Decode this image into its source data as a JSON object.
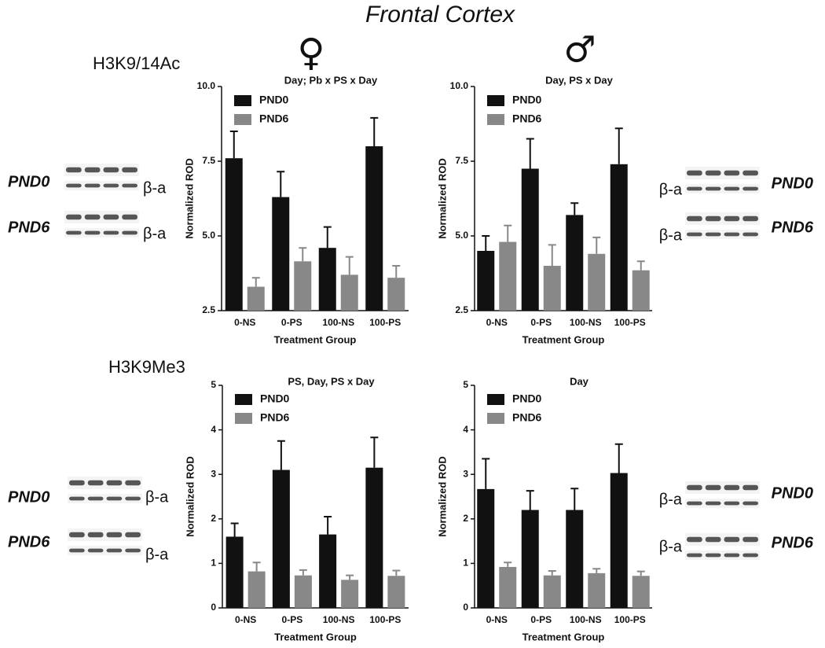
{
  "title": "Frontal Cortex",
  "row_labels": [
    "H3K9/14Ac",
    "H3K9Me3"
  ],
  "column_labels": [
    "♀",
    "♂"
  ],
  "blots": {
    "target_labels": [
      "PND0",
      "PND6"
    ],
    "loading_label": "β-a"
  },
  "chart_data": [
    {
      "type": "bar",
      "title": "Day; Pb x PS x Day",
      "xlabel": "Treatment Group",
      "ylabel": "Normalized ROD",
      "categories": [
        "0-NS",
        "0-PS",
        "100-NS",
        "100-PS"
      ],
      "series": [
        {
          "name": "PND0",
          "color": "#111111",
          "values": [
            7.6,
            6.3,
            4.6,
            8.0
          ],
          "errors": [
            0.9,
            0.85,
            0.7,
            0.95
          ]
        },
        {
          "name": "PND6",
          "color": "#888888",
          "values": [
            3.3,
            4.15,
            3.7,
            3.6
          ],
          "errors": [
            0.3,
            0.45,
            0.6,
            0.4
          ]
        }
      ],
      "ylim": [
        2.5,
        10
      ],
      "yticks": [
        2.5,
        {
          "value": 5,
          "label": "5.0"
        },
        7.5,
        {
          "value": 10,
          "label": "10.0"
        }
      ],
      "legend": "upper left"
    },
    {
      "type": "bar",
      "title": "Day, PS x Day",
      "xlabel": "Treatment Group",
      "ylabel": "Normalized ROD",
      "categories": [
        "0-NS",
        "0-PS",
        "100-NS",
        "100-PS"
      ],
      "series": [
        {
          "name": "PND0",
          "color": "#111111",
          "values": [
            4.5,
            7.25,
            5.7,
            7.4
          ],
          "errors": [
            0.5,
            1.0,
            0.4,
            1.2
          ]
        },
        {
          "name": "PND6",
          "color": "#888888",
          "values": [
            4.8,
            4.0,
            4.4,
            3.85
          ],
          "errors": [
            0.55,
            0.7,
            0.55,
            0.3
          ]
        }
      ],
      "ylim": [
        2.5,
        10
      ],
      "yticks": [
        2.5,
        {
          "value": 5,
          "label": "5.0"
        },
        7.5,
        {
          "value": 10,
          "label": "10.0"
        }
      ],
      "legend": "upper left"
    },
    {
      "type": "bar",
      "title": "PS, Day, PS x Day",
      "xlabel": "Treatment Group",
      "ylabel": "Normalized ROD",
      "categories": [
        "0-NS",
        "0-PS",
        "100-NS",
        "100-PS"
      ],
      "series": [
        {
          "name": "PND0",
          "color": "#111111",
          "values": [
            1.6,
            3.1,
            1.65,
            3.15
          ],
          "errors": [
            0.3,
            0.65,
            0.4,
            0.68
          ]
        },
        {
          "name": "PND6",
          "color": "#888888",
          "values": [
            0.82,
            0.73,
            0.63,
            0.72
          ],
          "errors": [
            0.2,
            0.12,
            0.1,
            0.12
          ]
        }
      ],
      "ylim": [
        0,
        5
      ],
      "yticks": [
        0,
        1,
        2,
        3,
        4,
        5
      ],
      "legend": "upper left"
    },
    {
      "type": "bar",
      "title": "Day",
      "xlabel": "Treatment Group",
      "ylabel": "Normalized ROD",
      "categories": [
        "0-NS",
        "0-PS",
        "100-NS",
        "100-PS"
      ],
      "series": [
        {
          "name": "PND0",
          "color": "#111111",
          "values": [
            2.67,
            2.2,
            2.2,
            3.03
          ],
          "errors": [
            0.68,
            0.43,
            0.48,
            0.65
          ]
        },
        {
          "name": "PND6",
          "color": "#888888",
          "values": [
            0.92,
            0.73,
            0.78,
            0.72
          ],
          "errors": [
            0.1,
            0.1,
            0.1,
            0.1
          ]
        }
      ],
      "ylim": [
        0,
        5
      ],
      "yticks": [
        0,
        1,
        2,
        3,
        4,
        5
      ],
      "legend": "upper left"
    }
  ]
}
